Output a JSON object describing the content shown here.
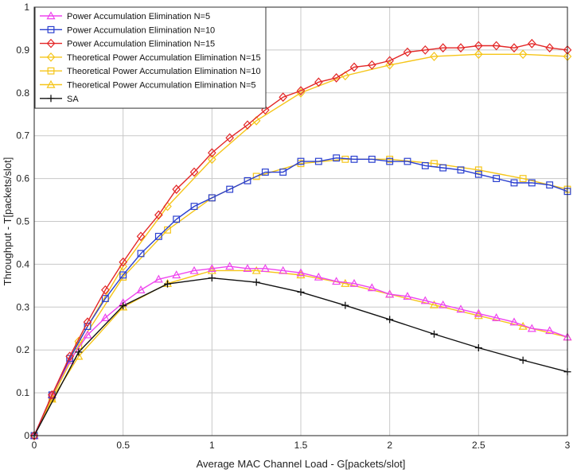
{
  "chart_data": {
    "type": "line",
    "xlabel": "Average MAC Channel Load - G[packets/slot]",
    "ylabel": "Throughput - T[packets/slot]",
    "xlim": [
      0,
      3
    ],
    "ylim": [
      0,
      1
    ],
    "xticks": [
      "0",
      "0.5",
      "1",
      "1.5",
      "2",
      "2.5",
      "3"
    ],
    "yticks": [
      "0",
      "0.1",
      "0.2",
      "0.3",
      "0.4",
      "0.5",
      "0.6",
      "0.7",
      "0.8",
      "0.9",
      "1"
    ],
    "grid": true,
    "legend_position": "top-left",
    "series": [
      {
        "name": "Power Accumulation Elimination N=5",
        "color": "#ee44ee",
        "marker": "triangle",
        "x": [
          0,
          0.1,
          0.2,
          0.3,
          0.4,
          0.5,
          0.6,
          0.7,
          0.8,
          0.9,
          1.0,
          1.1,
          1.2,
          1.3,
          1.4,
          1.5,
          1.6,
          1.7,
          1.8,
          1.9,
          2.0,
          2.1,
          2.2,
          2.3,
          2.4,
          2.5,
          2.6,
          2.7,
          2.8,
          2.9,
          3.0
        ],
        "y": [
          0,
          0.095,
          0.175,
          0.235,
          0.275,
          0.31,
          0.34,
          0.365,
          0.375,
          0.385,
          0.39,
          0.395,
          0.39,
          0.39,
          0.385,
          0.38,
          0.37,
          0.36,
          0.355,
          0.345,
          0.33,
          0.325,
          0.315,
          0.305,
          0.295,
          0.285,
          0.275,
          0.265,
          0.25,
          0.245,
          0.23
        ]
      },
      {
        "name": "Power Accumulation Elimination N=10",
        "color": "#2a3fcf",
        "marker": "square",
        "x": [
          0,
          0.1,
          0.2,
          0.3,
          0.4,
          0.5,
          0.6,
          0.7,
          0.8,
          0.9,
          1.0,
          1.1,
          1.2,
          1.3,
          1.4,
          1.5,
          1.6,
          1.7,
          1.8,
          1.9,
          2.0,
          2.1,
          2.2,
          2.3,
          2.4,
          2.5,
          2.6,
          2.7,
          2.8,
          2.9,
          3.0
        ],
        "y": [
          0,
          0.095,
          0.18,
          0.255,
          0.32,
          0.375,
          0.425,
          0.465,
          0.505,
          0.535,
          0.555,
          0.575,
          0.595,
          0.615,
          0.615,
          0.64,
          0.64,
          0.648,
          0.645,
          0.645,
          0.64,
          0.64,
          0.63,
          0.625,
          0.62,
          0.61,
          0.6,
          0.59,
          0.59,
          0.585,
          0.57
        ]
      },
      {
        "name": "Power Accumulation Elimination N=15",
        "color": "#e32626",
        "marker": "diamond",
        "x": [
          0,
          0.1,
          0.2,
          0.3,
          0.4,
          0.5,
          0.6,
          0.7,
          0.8,
          0.9,
          1.0,
          1.1,
          1.2,
          1.3,
          1.4,
          1.5,
          1.6,
          1.7,
          1.8,
          1.9,
          2.0,
          2.1,
          2.2,
          2.3,
          2.4,
          2.5,
          2.6,
          2.7,
          2.8,
          2.9,
          3.0
        ],
        "y": [
          0,
          0.095,
          0.185,
          0.265,
          0.34,
          0.405,
          0.465,
          0.515,
          0.575,
          0.615,
          0.66,
          0.695,
          0.725,
          0.76,
          0.79,
          0.805,
          0.825,
          0.835,
          0.86,
          0.865,
          0.875,
          0.895,
          0.9,
          0.905,
          0.905,
          0.91,
          0.91,
          0.905,
          0.915,
          0.905,
          0.9
        ]
      },
      {
        "name": "Theoretical Power Accumulation Elimination N=15",
        "color": "#f5c518",
        "marker": "diamond",
        "x": [
          0,
          0.1,
          0.25,
          0.5,
          0.75,
          1.0,
          1.25,
          1.5,
          1.75,
          2.0,
          2.25,
          2.5,
          2.75,
          3.0
        ],
        "y": [
          0,
          0.09,
          0.22,
          0.395,
          0.535,
          0.645,
          0.735,
          0.8,
          0.84,
          0.865,
          0.885,
          0.89,
          0.89,
          0.885
        ]
      },
      {
        "name": "Theoretical Power Accumulation Elimination N=10",
        "color": "#f5c518",
        "marker": "square",
        "x": [
          0,
          0.1,
          0.25,
          0.5,
          0.75,
          1.0,
          1.25,
          1.5,
          1.75,
          2.0,
          2.25,
          2.5,
          2.75,
          3.0
        ],
        "y": [
          0,
          0.088,
          0.21,
          0.37,
          0.48,
          0.555,
          0.605,
          0.635,
          0.645,
          0.645,
          0.635,
          0.62,
          0.6,
          0.575
        ]
      },
      {
        "name": "Theoretical Power Accumulation Elimination N=5",
        "color": "#f5c518",
        "marker": "triangle",
        "x": [
          0,
          0.1,
          0.25,
          0.5,
          0.75,
          1.0,
          1.25,
          1.5,
          1.75,
          2.0,
          2.25,
          2.5,
          2.75,
          3.0
        ],
        "y": [
          0,
          0.085,
          0.185,
          0.3,
          0.355,
          0.385,
          0.385,
          0.375,
          0.355,
          0.33,
          0.305,
          0.28,
          0.255,
          0.23
        ]
      },
      {
        "name": "SA",
        "color": "#111111",
        "marker": "plus",
        "x": [
          0,
          0.25,
          0.5,
          0.75,
          1.0,
          1.25,
          1.5,
          1.75,
          2.0,
          2.25,
          2.5,
          2.75,
          3.0
        ],
        "y": [
          0,
          0.195,
          0.303,
          0.354,
          0.368,
          0.358,
          0.335,
          0.304,
          0.271,
          0.237,
          0.205,
          0.176,
          0.149
        ]
      }
    ]
  }
}
